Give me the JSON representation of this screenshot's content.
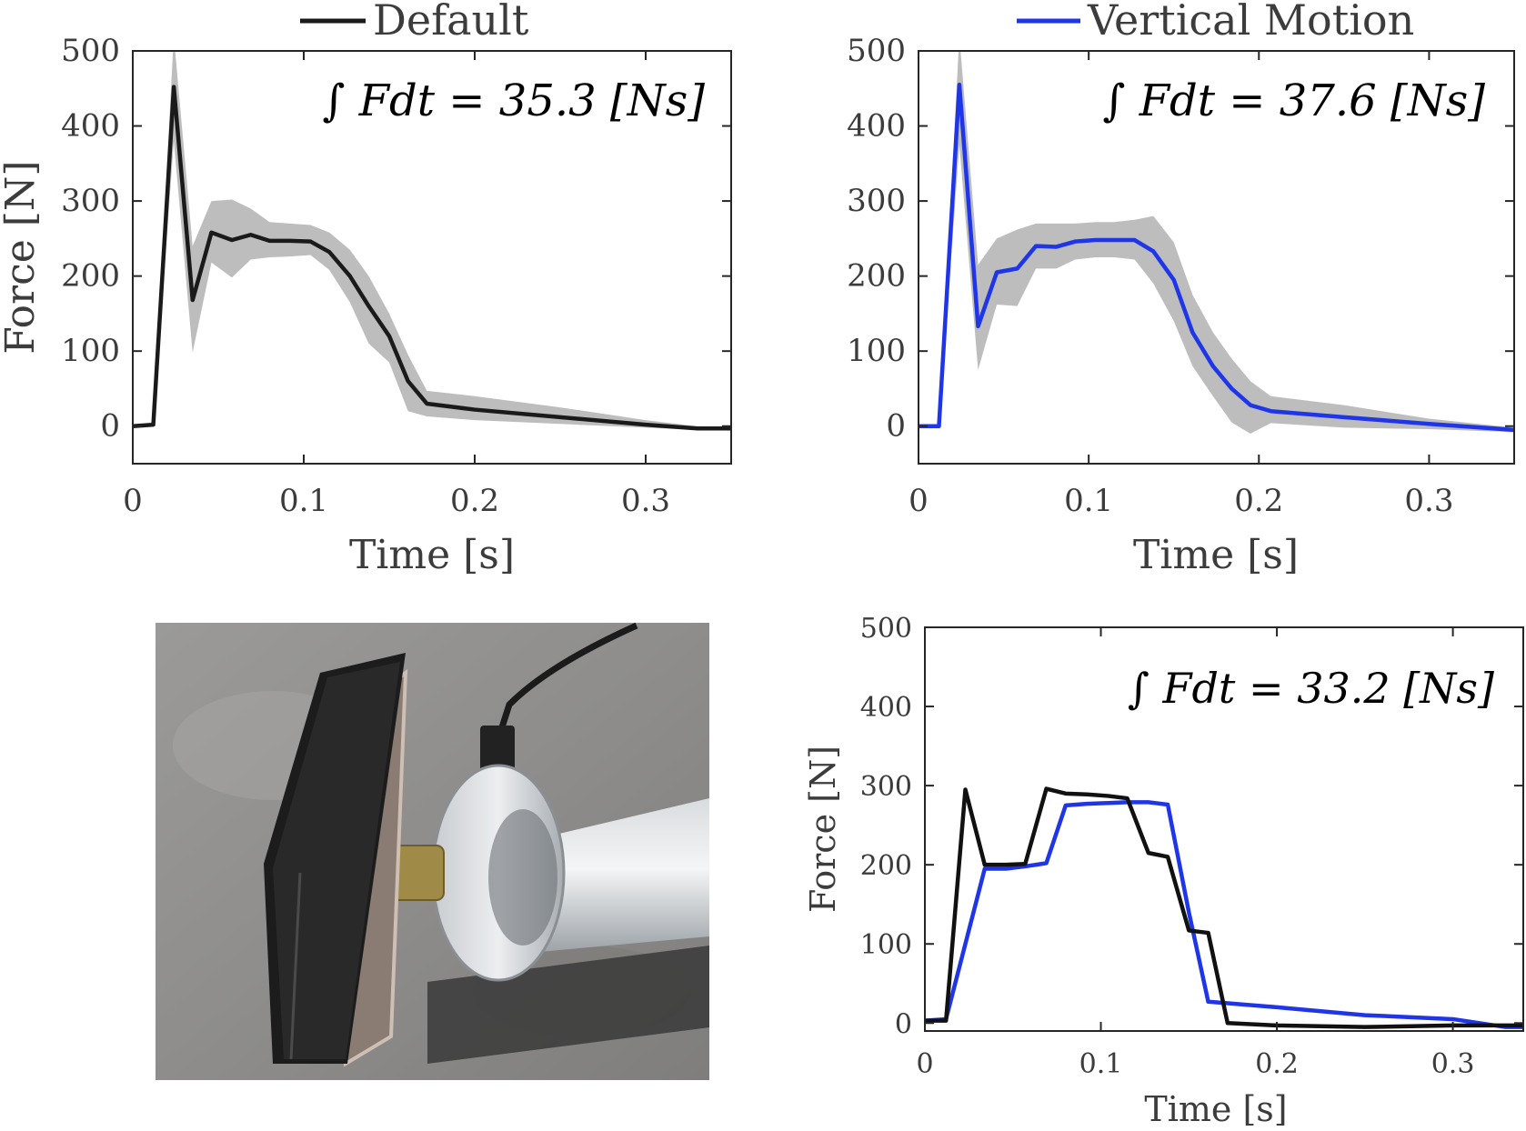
{
  "chart_data": [
    {
      "type": "line",
      "panel": "top-left",
      "legend": {
        "label": "Default",
        "color": "#1a1a1a",
        "placement": "top-center"
      },
      "annotation": "∫ Fdt = 35.3 [Ns]",
      "xlabel": "Time [s]",
      "ylabel": "Force [N]",
      "xlim": [
        0,
        0.35
      ],
      "ylim": [
        -50,
        500
      ],
      "xticks": [
        "0",
        "0.1",
        "0.2",
        "0.3"
      ],
      "yticks": [
        "0",
        "100",
        "200",
        "300",
        "400",
        "500"
      ],
      "grid": false,
      "series": [
        {
          "name": "Default",
          "color": "#1a1a1a",
          "x": [
            0,
            0.012,
            0.024,
            0.035,
            0.046,
            0.058,
            0.069,
            0.08,
            0.092,
            0.104,
            0.115,
            0.127,
            0.138,
            0.15,
            0.161,
            0.172,
            0.2,
            0.25,
            0.3,
            0.33,
            0.35
          ],
          "y": [
            0,
            2,
            452,
            168,
            258,
            248,
            255,
            247,
            247,
            246,
            232,
            200,
            160,
            120,
            60,
            30,
            22,
            12,
            2,
            -3,
            -3
          ],
          "band_upper": [
            0,
            4,
            520,
            240,
            300,
            302,
            290,
            272,
            270,
            268,
            258,
            235,
            200,
            150,
            95,
            47,
            40,
            25,
            8,
            0,
            -1
          ],
          "band_lower": [
            0,
            0,
            380,
            98,
            218,
            198,
            222,
            225,
            226,
            228,
            208,
            165,
            110,
            85,
            20,
            13,
            8,
            3,
            -2,
            -5,
            -5
          ]
        }
      ]
    },
    {
      "type": "line",
      "panel": "top-right",
      "legend": {
        "label": "Vertical Motion",
        "color": "#1f36e8",
        "placement": "top-center"
      },
      "annotation": "∫ Fdt = 37.6 [Ns]",
      "xlabel": "Time [s]",
      "ylabel": "",
      "xlim": [
        0,
        0.35
      ],
      "ylim": [
        -50,
        500
      ],
      "xticks": [
        "0",
        "0.1",
        "0.2",
        "0.3"
      ],
      "yticks": [
        "0",
        "100",
        "200",
        "300",
        "400",
        "500"
      ],
      "grid": false,
      "series": [
        {
          "name": "Vertical Motion",
          "color": "#1f36e8",
          "x": [
            0,
            0.012,
            0.024,
            0.035,
            0.046,
            0.058,
            0.069,
            0.081,
            0.092,
            0.104,
            0.115,
            0.127,
            0.138,
            0.15,
            0.161,
            0.173,
            0.184,
            0.195,
            0.207,
            0.25,
            0.3,
            0.35
          ],
          "y": [
            0,
            0,
            455,
            133,
            205,
            210,
            240,
            239,
            246,
            248,
            248,
            248,
            233,
            195,
            125,
            80,
            50,
            28,
            20,
            12,
            3,
            -5
          ],
          "band_upper": [
            0,
            2,
            520,
            215,
            250,
            262,
            270,
            270,
            270,
            272,
            272,
            275,
            280,
            245,
            175,
            125,
            90,
            60,
            40,
            28,
            10,
            -2
          ],
          "band_lower": [
            0,
            -2,
            375,
            75,
            162,
            160,
            210,
            210,
            222,
            225,
            225,
            222,
            190,
            140,
            80,
            40,
            5,
            -10,
            4,
            -2,
            -4,
            -8
          ]
        }
      ]
    },
    {
      "type": "line",
      "panel": "bottom-right",
      "annotation": "∫ Fdt = 33.2 [Ns]",
      "xlabel": "Time [s]",
      "ylabel": "Force [N]",
      "xlim": [
        0,
        0.34
      ],
      "ylim": [
        -10,
        500
      ],
      "xticks": [
        "0",
        "0.1",
        "0.2",
        "0.3"
      ],
      "yticks": [
        "0",
        "100",
        "200",
        "300",
        "400",
        "500"
      ],
      "grid": false,
      "series": [
        {
          "name": "",
          "color": "#1f36e8",
          "x": [
            0,
            0.012,
            0.034,
            0.046,
            0.057,
            0.069,
            0.08,
            0.092,
            0.104,
            0.115,
            0.127,
            0.138,
            0.15,
            0.161,
            0.2,
            0.25,
            0.3,
            0.33,
            0.34
          ],
          "y": [
            3,
            5,
            195,
            195,
            198,
            202,
            275,
            277,
            278,
            279,
            279,
            276,
            140,
            27,
            20,
            10,
            5,
            -5,
            -5
          ]
        },
        {
          "name": "",
          "color": "#111111",
          "x": [
            0,
            0.012,
            0.023,
            0.034,
            0.046,
            0.057,
            0.069,
            0.08,
            0.092,
            0.104,
            0.115,
            0.127,
            0.138,
            0.15,
            0.161,
            0.172,
            0.2,
            0.25,
            0.3,
            0.34
          ],
          "y": [
            3,
            3,
            295,
            200,
            200,
            201,
            296,
            290,
            289,
            287,
            284,
            215,
            210,
            117,
            114,
            0,
            -3,
            -5,
            -3,
            -3
          ]
        }
      ]
    }
  ],
  "photo": {
    "subject": "force-plate-sensor-photo"
  }
}
